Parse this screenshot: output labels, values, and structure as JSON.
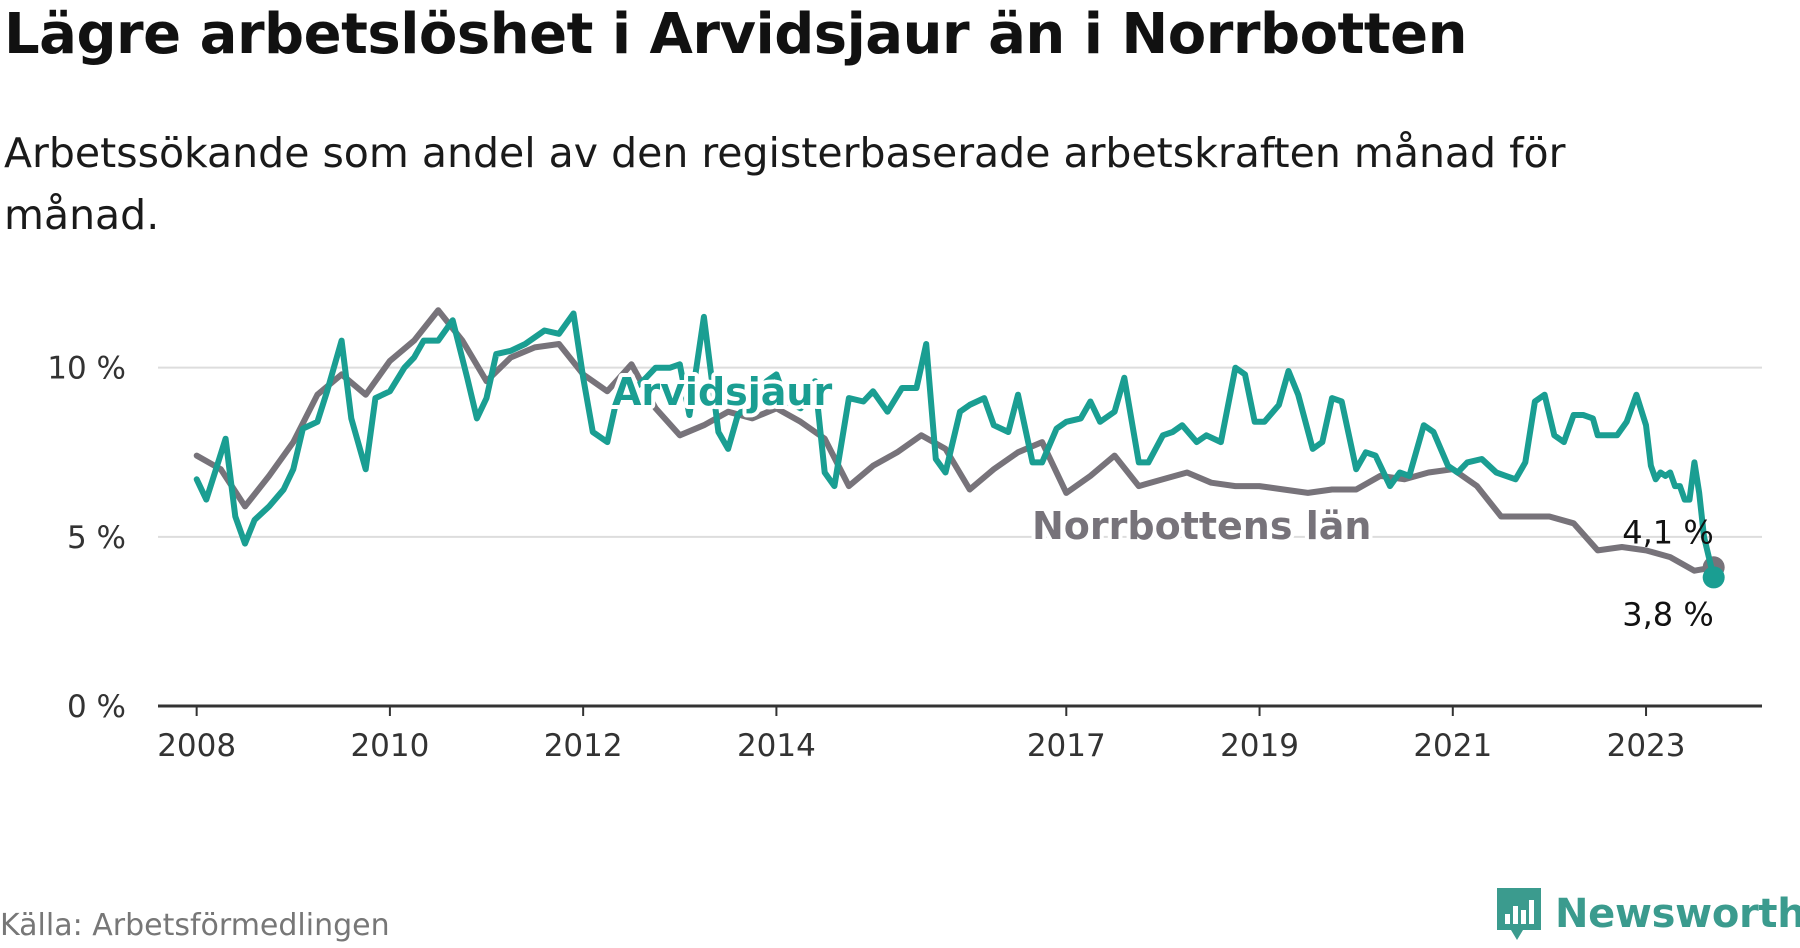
{
  "title": "Lägre arbetslöshet i Arvidsjaur än i Norrbotten",
  "subtitle": "Arbetssökande som andel av den registerbaserade arbetskraften månad för månad.",
  "source": "Källa: Arbetsförmedlingen",
  "brand": "Newsworthy",
  "colors": {
    "arvidsjaur": "#1a9e92",
    "norrbotten": "#77737a",
    "grid": "#dddddd",
    "axis": "#333333",
    "brand": "#3b9b8e"
  },
  "chart_data": {
    "type": "line",
    "title": "Lägre arbetslöshet i Arvidsjaur än i Norrbotten",
    "xlabel": "",
    "ylabel": "",
    "ylim": [
      0,
      12
    ],
    "xlim": [
      2007.6,
      2024.2
    ],
    "y_ticks": [
      {
        "value": 0,
        "label": "0 %"
      },
      {
        "value": 5,
        "label": "5 %"
      },
      {
        "value": 10,
        "label": "10 %"
      }
    ],
    "x_ticks": [
      {
        "value": 2008,
        "label": "2008"
      },
      {
        "value": 2010,
        "label": "2010"
      },
      {
        "value": 2012,
        "label": "2012"
      },
      {
        "value": 2014,
        "label": "2014"
      },
      {
        "value": 2017,
        "label": "2017"
      },
      {
        "value": 2019,
        "label": "2019"
      },
      {
        "value": 2021,
        "label": "2021"
      },
      {
        "value": 2023,
        "label": "2023"
      }
    ],
    "series": [
      {
        "name": "Norrbottens län",
        "label": "Norrbottens län",
        "end_label": "4,1 %",
        "points": [
          [
            2008.0,
            7.4
          ],
          [
            2008.25,
            7.0
          ],
          [
            2008.5,
            5.9
          ],
          [
            2008.75,
            6.8
          ],
          [
            2009.0,
            7.8
          ],
          [
            2009.25,
            9.2
          ],
          [
            2009.5,
            9.8
          ],
          [
            2009.75,
            9.2
          ],
          [
            2010.0,
            10.2
          ],
          [
            2010.25,
            10.8
          ],
          [
            2010.5,
            11.7
          ],
          [
            2010.75,
            10.8
          ],
          [
            2011.0,
            9.6
          ],
          [
            2011.25,
            10.3
          ],
          [
            2011.5,
            10.6
          ],
          [
            2011.75,
            10.7
          ],
          [
            2012.0,
            9.8
          ],
          [
            2012.25,
            9.3
          ],
          [
            2012.5,
            10.1
          ],
          [
            2012.75,
            8.8
          ],
          [
            2013.0,
            8.0
          ],
          [
            2013.25,
            8.3
          ],
          [
            2013.5,
            8.7
          ],
          [
            2013.75,
            8.5
          ],
          [
            2014.0,
            8.8
          ],
          [
            2014.25,
            8.4
          ],
          [
            2014.5,
            7.9
          ],
          [
            2014.75,
            6.5
          ],
          [
            2015.0,
            7.1
          ],
          [
            2015.25,
            7.5
          ],
          [
            2015.5,
            8.0
          ],
          [
            2015.75,
            7.6
          ],
          [
            2016.0,
            6.4
          ],
          [
            2016.25,
            7.0
          ],
          [
            2016.5,
            7.5
          ],
          [
            2016.75,
            7.8
          ],
          [
            2017.0,
            6.3
          ],
          [
            2017.25,
            6.8
          ],
          [
            2017.5,
            7.4
          ],
          [
            2017.75,
            6.5
          ],
          [
            2018.0,
            6.7
          ],
          [
            2018.25,
            6.9
          ],
          [
            2018.5,
            6.6
          ],
          [
            2018.75,
            6.5
          ],
          [
            2019.0,
            6.5
          ],
          [
            2019.25,
            6.4
          ],
          [
            2019.5,
            6.3
          ],
          [
            2019.75,
            6.4
          ],
          [
            2020.0,
            6.4
          ],
          [
            2020.25,
            6.8
          ],
          [
            2020.5,
            6.7
          ],
          [
            2020.75,
            6.9
          ],
          [
            2021.0,
            7.0
          ],
          [
            2021.25,
            6.5
          ],
          [
            2021.5,
            5.6
          ],
          [
            2021.75,
            5.6
          ],
          [
            2022.0,
            5.6
          ],
          [
            2022.25,
            5.4
          ],
          [
            2022.5,
            4.6
          ],
          [
            2022.75,
            4.7
          ],
          [
            2023.0,
            4.6
          ],
          [
            2023.25,
            4.4
          ],
          [
            2023.5,
            4.0
          ],
          [
            2023.7,
            4.1
          ]
        ]
      },
      {
        "name": "Arvidsjaur",
        "label": "Arvidsjaur",
        "end_label": "3,8 %",
        "points": [
          [
            2008.0,
            6.7
          ],
          [
            2008.1,
            6.1
          ],
          [
            2008.2,
            7.0
          ],
          [
            2008.3,
            7.9
          ],
          [
            2008.4,
            5.6
          ],
          [
            2008.5,
            4.8
          ],
          [
            2008.6,
            5.5
          ],
          [
            2008.75,
            5.9
          ],
          [
            2008.9,
            6.4
          ],
          [
            2009.0,
            7.0
          ],
          [
            2009.1,
            8.2
          ],
          [
            2009.25,
            8.4
          ],
          [
            2009.35,
            9.3
          ],
          [
            2009.5,
            10.8
          ],
          [
            2009.6,
            8.5
          ],
          [
            2009.75,
            7.0
          ],
          [
            2009.85,
            9.1
          ],
          [
            2010.0,
            9.3
          ],
          [
            2010.15,
            10.0
          ],
          [
            2010.25,
            10.3
          ],
          [
            2010.35,
            10.8
          ],
          [
            2010.5,
            10.8
          ],
          [
            2010.65,
            11.4
          ],
          [
            2010.8,
            9.7
          ],
          [
            2010.9,
            8.5
          ],
          [
            2011.0,
            9.1
          ],
          [
            2011.1,
            10.4
          ],
          [
            2011.25,
            10.5
          ],
          [
            2011.4,
            10.7
          ],
          [
            2011.6,
            11.1
          ],
          [
            2011.75,
            11.0
          ],
          [
            2011.9,
            11.6
          ],
          [
            2012.0,
            9.7
          ],
          [
            2012.1,
            8.1
          ],
          [
            2012.25,
            7.8
          ],
          [
            2012.35,
            9.1
          ],
          [
            2012.5,
            9.3
          ],
          [
            2012.65,
            9.7
          ],
          [
            2012.75,
            10.0
          ],
          [
            2012.9,
            10.0
          ],
          [
            2013.0,
            10.1
          ],
          [
            2013.1,
            8.6
          ],
          [
            2013.25,
            11.5
          ],
          [
            2013.4,
            8.1
          ],
          [
            2013.5,
            7.6
          ],
          [
            2013.6,
            8.6
          ],
          [
            2013.75,
            9.0
          ],
          [
            2013.9,
            9.6
          ],
          [
            2014.0,
            9.8
          ],
          [
            2014.1,
            9.0
          ],
          [
            2014.25,
            8.8
          ],
          [
            2014.4,
            9.6
          ],
          [
            2014.5,
            6.9
          ],
          [
            2014.6,
            6.5
          ],
          [
            2014.75,
            9.1
          ],
          [
            2014.9,
            9.0
          ],
          [
            2015.0,
            9.3
          ],
          [
            2015.15,
            8.7
          ],
          [
            2015.3,
            9.4
          ],
          [
            2015.45,
            9.4
          ],
          [
            2015.55,
            10.7
          ],
          [
            2015.65,
            7.3
          ],
          [
            2015.75,
            6.9
          ],
          [
            2015.9,
            8.7
          ],
          [
            2016.0,
            8.9
          ],
          [
            2016.15,
            9.1
          ],
          [
            2016.25,
            8.3
          ],
          [
            2016.4,
            8.1
          ],
          [
            2016.5,
            9.2
          ],
          [
            2016.65,
            7.2
          ],
          [
            2016.75,
            7.2
          ],
          [
            2016.9,
            8.2
          ],
          [
            2017.0,
            8.4
          ],
          [
            2017.15,
            8.5
          ],
          [
            2017.25,
            9.0
          ],
          [
            2017.35,
            8.4
          ],
          [
            2017.5,
            8.7
          ],
          [
            2017.6,
            9.7
          ],
          [
            2017.75,
            7.2
          ],
          [
            2017.85,
            7.2
          ],
          [
            2018.0,
            8.0
          ],
          [
            2018.1,
            8.1
          ],
          [
            2018.2,
            8.3
          ],
          [
            2018.35,
            7.8
          ],
          [
            2018.45,
            8.0
          ],
          [
            2018.6,
            7.8
          ],
          [
            2018.75,
            10.0
          ],
          [
            2018.85,
            9.8
          ],
          [
            2018.95,
            8.4
          ],
          [
            2019.05,
            8.4
          ],
          [
            2019.2,
            8.9
          ],
          [
            2019.3,
            9.9
          ],
          [
            2019.4,
            9.2
          ],
          [
            2019.55,
            7.6
          ],
          [
            2019.65,
            7.8
          ],
          [
            2019.75,
            9.1
          ],
          [
            2019.85,
            9.0
          ],
          [
            2020.0,
            7.0
          ],
          [
            2020.1,
            7.5
          ],
          [
            2020.2,
            7.4
          ],
          [
            2020.35,
            6.5
          ],
          [
            2020.45,
            6.9
          ],
          [
            2020.55,
            6.8
          ],
          [
            2020.7,
            8.3
          ],
          [
            2020.8,
            8.1
          ],
          [
            2020.95,
            7.1
          ],
          [
            2021.05,
            6.9
          ],
          [
            2021.15,
            7.2
          ],
          [
            2021.3,
            7.3
          ],
          [
            2021.45,
            6.9
          ],
          [
            2021.55,
            6.8
          ],
          [
            2021.65,
            6.7
          ],
          [
            2021.75,
            7.2
          ],
          [
            2021.85,
            9.0
          ],
          [
            2021.95,
            9.2
          ],
          [
            2022.05,
            8.0
          ],
          [
            2022.15,
            7.8
          ],
          [
            2022.25,
            8.6
          ],
          [
            2022.35,
            8.6
          ],
          [
            2022.45,
            8.5
          ],
          [
            2022.5,
            8.0
          ],
          [
            2022.6,
            8.0
          ],
          [
            2022.7,
            8.0
          ],
          [
            2022.8,
            8.4
          ],
          [
            2022.9,
            9.2
          ],
          [
            2023.0,
            8.3
          ],
          [
            2023.05,
            7.1
          ],
          [
            2023.1,
            6.7
          ],
          [
            2023.15,
            6.9
          ],
          [
            2023.2,
            6.8
          ],
          [
            2023.25,
            6.9
          ],
          [
            2023.3,
            6.5
          ],
          [
            2023.35,
            6.5
          ],
          [
            2023.4,
            6.1
          ],
          [
            2023.45,
            6.1
          ],
          [
            2023.5,
            7.2
          ],
          [
            2023.55,
            6.3
          ],
          [
            2023.6,
            5.0
          ],
          [
            2023.7,
            3.8
          ]
        ]
      }
    ]
  }
}
